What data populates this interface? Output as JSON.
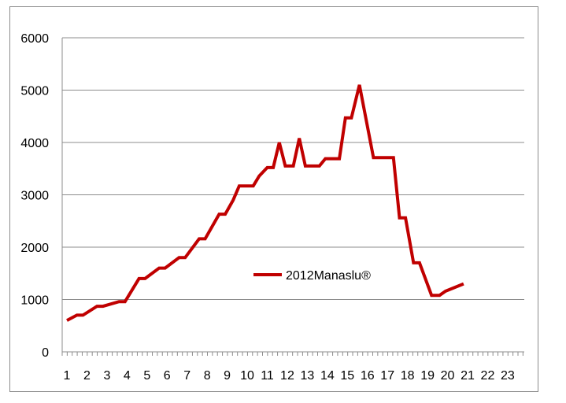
{
  "chart_data": {
    "type": "line",
    "title": "",
    "xlabel": "",
    "ylabel": "",
    "ylim": [
      0,
      6000
    ],
    "yticks": [
      "0",
      "1000",
      "2000",
      "3000",
      "4000",
      "5000",
      "6000"
    ],
    "xticks": [
      "1",
      "2",
      "3",
      "4",
      "5",
      "6",
      "7",
      "8",
      "9",
      "10",
      "11",
      "12",
      "13",
      "14",
      "15",
      "16",
      "17",
      "18",
      "19",
      "20",
      "21",
      "22",
      "23"
    ],
    "grid": true,
    "legend_position": "center",
    "series": [
      {
        "name": "2012Manaslu®",
        "color": "#c00000",
        "x": [
          1,
          1.5,
          1.8,
          2.5,
          2.8,
          3.6,
          3.9,
          4.6,
          4.9,
          5.6,
          5.9,
          6.6,
          6.9,
          7.6,
          7.9,
          8.6,
          8.9,
          9.3,
          9.6,
          10.3,
          10.6,
          11,
          11.3,
          11.6,
          11.9,
          12.3,
          12.6,
          12.9,
          13.6,
          13.9,
          14.6,
          14.9,
          15.2,
          15.6,
          16.3,
          17,
          17.3,
          17.6,
          17.9,
          18.3,
          18.6,
          19.2,
          19.6,
          19.9,
          20.8
        ],
        "y": [
          600,
          700,
          700,
          870,
          870,
          960,
          960,
          1400,
          1400,
          1600,
          1600,
          1800,
          1800,
          2160,
          2160,
          2630,
          2630,
          2900,
          3170,
          3170,
          3360,
          3520,
          3520,
          4000,
          3550,
          3550,
          4080,
          3550,
          3550,
          3690,
          3690,
          4470,
          4470,
          5100,
          3710,
          3710,
          3710,
          2560,
          2560,
          1700,
          1700,
          1080,
          1080,
          1160,
          1300
        ]
      }
    ]
  }
}
